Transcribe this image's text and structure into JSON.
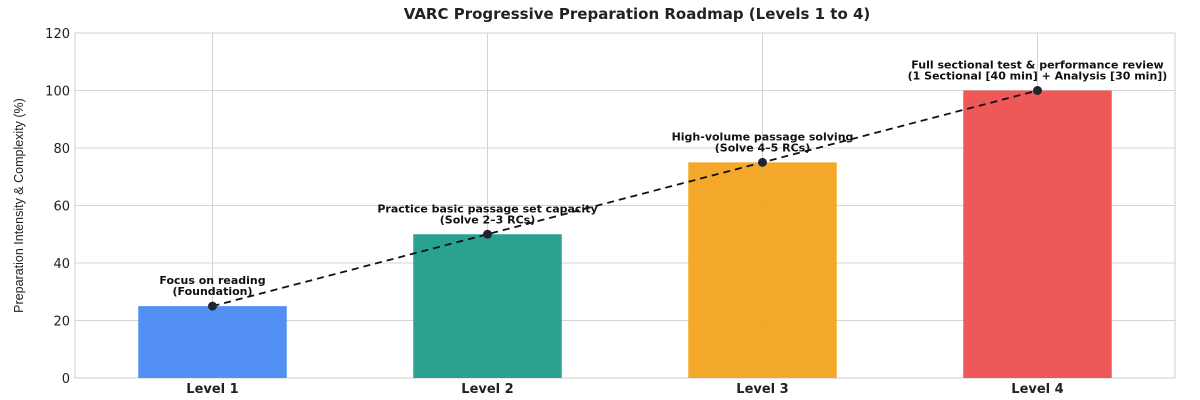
{
  "chart_data": {
    "type": "bar",
    "title": "VARC Progressive Preparation Roadmap (Levels 1 to 4)",
    "xlabel": "",
    "ylabel": "Preparation Intensity & Complexity (%)",
    "ylim": [
      0,
      120
    ],
    "yticks": [
      0,
      20,
      40,
      60,
      80,
      100,
      120
    ],
    "grid": true,
    "categories": [
      "Level 1",
      "Level 2",
      "Level 3",
      "Level 4"
    ],
    "values": [
      25,
      50,
      75,
      100
    ],
    "bar_colors": [
      "#4f8ef5",
      "#26a08f",
      "#f4a626",
      "#ef5555"
    ],
    "trend_line": {
      "style": "dashed",
      "color": "#111111",
      "values": [
        25,
        50,
        75,
        100
      ]
    },
    "annotations": [
      {
        "category": "Level 1",
        "lines": [
          "Focus on reading",
          "(Foundation)"
        ]
      },
      {
        "category": "Level 2",
        "lines": [
          "Practice basic passage set capacity",
          "(Solve 2–3 RCs)"
        ]
      },
      {
        "category": "Level 3",
        "lines": [
          "High-volume passage solving",
          "(Solve 4–5 RCs)"
        ]
      },
      {
        "category": "Level 4",
        "lines": [
          "Full sectional test & performance review",
          "(1 Sectional [40 min] + Analysis [30 min])"
        ]
      }
    ]
  }
}
